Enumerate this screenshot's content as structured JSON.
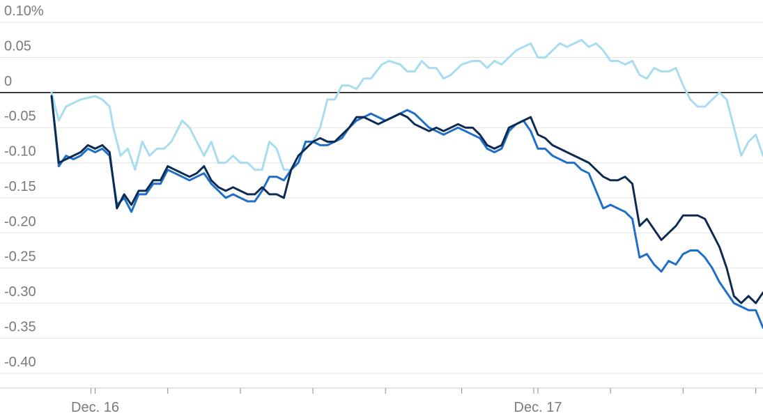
{
  "chart_data": {
    "type": "line",
    "y_unit_suffix": "%",
    "ylim": [
      -0.42,
      0.11
    ],
    "yticks": [
      0.1,
      0.05,
      0,
      -0.05,
      -0.1,
      -0.15,
      -0.2,
      -0.25,
      -0.3,
      -0.35,
      -0.4
    ],
    "ytick_labels": [
      "0.10%",
      "0.05",
      "0",
      "-0.05",
      "-0.10",
      "-0.15",
      "-0.20",
      "-0.25",
      "-0.30",
      "-0.35",
      "-0.40"
    ],
    "grid": true,
    "x_tick_labels": [
      {
        "index": 12,
        "label": "Dec. 16"
      },
      {
        "index": 134,
        "label": "Dec. 17"
      }
    ],
    "x_minor_tick_indices": [
      12,
      32,
      52,
      72,
      92,
      113,
      134,
      154,
      174,
      194
    ],
    "n_points": 197,
    "series": [
      {
        "color": "#a8dcef",
        "points": [
          [
            0,
            0.0
          ],
          [
            2,
            -0.04
          ],
          [
            4,
            -0.02
          ],
          [
            8,
            -0.01
          ],
          [
            12,
            -0.005
          ],
          [
            14,
            -0.01
          ],
          [
            16,
            -0.02
          ],
          [
            17,
            -0.05
          ],
          [
            19,
            -0.09
          ],
          [
            21,
            -0.08
          ],
          [
            23,
            -0.11
          ],
          [
            25,
            -0.07
          ],
          [
            27,
            -0.09
          ],
          [
            29,
            -0.08
          ],
          [
            31,
            -0.08
          ],
          [
            33,
            -0.07
          ],
          [
            36,
            -0.04
          ],
          [
            38,
            -0.05
          ],
          [
            40,
            -0.07
          ],
          [
            42,
            -0.09
          ],
          [
            44,
            -0.07
          ],
          [
            46,
            -0.1
          ],
          [
            48,
            -0.1
          ],
          [
            50,
            -0.09
          ],
          [
            52,
            -0.1
          ],
          [
            54,
            -0.1
          ],
          [
            56,
            -0.11
          ],
          [
            58,
            -0.11
          ],
          [
            60,
            -0.07
          ],
          [
            62,
            -0.08
          ],
          [
            64,
            -0.11
          ],
          [
            66,
            -0.11
          ],
          [
            68,
            -0.1
          ],
          [
            70,
            -0.07
          ],
          [
            72,
            -0.07
          ],
          [
            74,
            -0.05
          ],
          [
            76,
            -0.01
          ],
          [
            78,
            -0.01
          ],
          [
            80,
            0.01
          ],
          [
            82,
            0.01
          ],
          [
            84,
            0.005
          ],
          [
            86,
            0.02
          ],
          [
            88,
            0.02
          ],
          [
            91,
            0.04
          ],
          [
            93,
            0.045
          ],
          [
            96,
            0.04
          ],
          [
            98,
            0.03
          ],
          [
            100,
            0.03
          ],
          [
            102,
            0.045
          ],
          [
            104,
            0.035
          ],
          [
            106,
            0.035
          ],
          [
            108,
            0.02
          ],
          [
            110,
            0.025
          ],
          [
            113,
            0.04
          ],
          [
            116,
            0.045
          ],
          [
            118,
            0.045
          ],
          [
            120,
            0.035
          ],
          [
            122,
            0.045
          ],
          [
            124,
            0.04
          ],
          [
            126,
            0.05
          ],
          [
            128,
            0.06
          ],
          [
            130,
            0.065
          ],
          [
            132,
            0.07
          ],
          [
            134,
            0.05
          ],
          [
            136,
            0.05
          ],
          [
            138,
            0.06
          ],
          [
            140,
            0.07
          ],
          [
            142,
            0.065
          ],
          [
            144,
            0.07
          ],
          [
            146,
            0.075
          ],
          [
            148,
            0.065
          ],
          [
            150,
            0.07
          ],
          [
            152,
            0.06
          ],
          [
            154,
            0.045
          ],
          [
            156,
            0.045
          ],
          [
            158,
            0.04
          ],
          [
            160,
            0.045
          ],
          [
            162,
            0.025
          ],
          [
            164,
            0.02
          ],
          [
            166,
            0.035
          ],
          [
            168,
            0.03
          ],
          [
            170,
            0.03
          ],
          [
            172,
            0.035
          ],
          [
            174,
            0.01
          ],
          [
            176,
            -0.01
          ],
          [
            178,
            -0.02
          ],
          [
            180,
            -0.02
          ],
          [
            182,
            -0.01
          ],
          [
            184,
            0.0
          ],
          [
            186,
            -0.01
          ],
          [
            188,
            -0.05
          ],
          [
            190,
            -0.09
          ],
          [
            192,
            -0.07
          ],
          [
            194,
            -0.06
          ],
          [
            196,
            -0.09
          ]
        ]
      },
      {
        "color": "#1f6fc7",
        "points": [
          [
            0,
            -0.005
          ],
          [
            2,
            -0.105
          ],
          [
            4,
            -0.09
          ],
          [
            6,
            -0.095
          ],
          [
            8,
            -0.09
          ],
          [
            10,
            -0.08
          ],
          [
            12,
            -0.085
          ],
          [
            14,
            -0.08
          ],
          [
            16,
            -0.09
          ],
          [
            18,
            -0.16
          ],
          [
            20,
            -0.15
          ],
          [
            22,
            -0.17
          ],
          [
            24,
            -0.145
          ],
          [
            26,
            -0.145
          ],
          [
            28,
            -0.13
          ],
          [
            30,
            -0.13
          ],
          [
            32,
            -0.11
          ],
          [
            34,
            -0.115
          ],
          [
            36,
            -0.12
          ],
          [
            38,
            -0.125
          ],
          [
            40,
            -0.12
          ],
          [
            42,
            -0.115
          ],
          [
            44,
            -0.13
          ],
          [
            46,
            -0.14
          ],
          [
            48,
            -0.15
          ],
          [
            50,
            -0.145
          ],
          [
            52,
            -0.15
          ],
          [
            54,
            -0.155
          ],
          [
            56,
            -0.155
          ],
          [
            58,
            -0.14
          ],
          [
            60,
            -0.12
          ],
          [
            62,
            -0.12
          ],
          [
            64,
            -0.125
          ],
          [
            66,
            -0.11
          ],
          [
            68,
            -0.1
          ],
          [
            70,
            -0.07
          ],
          [
            72,
            -0.07
          ],
          [
            74,
            -0.075
          ],
          [
            76,
            -0.075
          ],
          [
            78,
            -0.07
          ],
          [
            80,
            -0.065
          ],
          [
            82,
            -0.05
          ],
          [
            84,
            -0.04
          ],
          [
            86,
            -0.035
          ],
          [
            88,
            -0.03
          ],
          [
            90,
            -0.035
          ],
          [
            92,
            -0.04
          ],
          [
            94,
            -0.035
          ],
          [
            96,
            -0.03
          ],
          [
            98,
            -0.025
          ],
          [
            100,
            -0.03
          ],
          [
            102,
            -0.04
          ],
          [
            104,
            -0.05
          ],
          [
            106,
            -0.055
          ],
          [
            108,
            -0.06
          ],
          [
            110,
            -0.055
          ],
          [
            112,
            -0.05
          ],
          [
            114,
            -0.055
          ],
          [
            116,
            -0.06
          ],
          [
            118,
            -0.065
          ],
          [
            120,
            -0.08
          ],
          [
            122,
            -0.085
          ],
          [
            124,
            -0.08
          ],
          [
            126,
            -0.055
          ],
          [
            128,
            -0.045
          ],
          [
            130,
            -0.04
          ],
          [
            132,
            -0.055
          ],
          [
            134,
            -0.08
          ],
          [
            136,
            -0.08
          ],
          [
            138,
            -0.09
          ],
          [
            140,
            -0.095
          ],
          [
            142,
            -0.1
          ],
          [
            144,
            -0.1
          ],
          [
            146,
            -0.11
          ],
          [
            148,
            -0.115
          ],
          [
            150,
            -0.14
          ],
          [
            152,
            -0.165
          ],
          [
            154,
            -0.16
          ],
          [
            156,
            -0.165
          ],
          [
            158,
            -0.17
          ],
          [
            160,
            -0.18
          ],
          [
            162,
            -0.235
          ],
          [
            164,
            -0.23
          ],
          [
            166,
            -0.245
          ],
          [
            168,
            -0.255
          ],
          [
            170,
            -0.24
          ],
          [
            172,
            -0.245
          ],
          [
            174,
            -0.23
          ],
          [
            176,
            -0.225
          ],
          [
            178,
            -0.225
          ],
          [
            180,
            -0.235
          ],
          [
            182,
            -0.25
          ],
          [
            184,
            -0.27
          ],
          [
            186,
            -0.285
          ],
          [
            188,
            -0.3
          ],
          [
            190,
            -0.305
          ],
          [
            192,
            -0.31
          ],
          [
            194,
            -0.31
          ],
          [
            196,
            -0.335
          ]
        ]
      },
      {
        "color": "#0d2b52",
        "points": [
          [
            0,
            -0.005
          ],
          [
            2,
            -0.1
          ],
          [
            4,
            -0.095
          ],
          [
            6,
            -0.09
          ],
          [
            8,
            -0.085
          ],
          [
            10,
            -0.075
          ],
          [
            12,
            -0.08
          ],
          [
            14,
            -0.075
          ],
          [
            16,
            -0.085
          ],
          [
            18,
            -0.165
          ],
          [
            20,
            -0.145
          ],
          [
            22,
            -0.16
          ],
          [
            24,
            -0.14
          ],
          [
            26,
            -0.14
          ],
          [
            28,
            -0.125
          ],
          [
            30,
            -0.125
          ],
          [
            32,
            -0.105
          ],
          [
            34,
            -0.11
          ],
          [
            36,
            -0.115
          ],
          [
            38,
            -0.12
          ],
          [
            40,
            -0.115
          ],
          [
            42,
            -0.105
          ],
          [
            44,
            -0.125
          ],
          [
            46,
            -0.135
          ],
          [
            48,
            -0.14
          ],
          [
            50,
            -0.135
          ],
          [
            52,
            -0.14
          ],
          [
            54,
            -0.145
          ],
          [
            56,
            -0.145
          ],
          [
            58,
            -0.135
          ],
          [
            60,
            -0.145
          ],
          [
            62,
            -0.145
          ],
          [
            64,
            -0.15
          ],
          [
            66,
            -0.11
          ],
          [
            68,
            -0.09
          ],
          [
            70,
            -0.08
          ],
          [
            72,
            -0.07
          ],
          [
            74,
            -0.065
          ],
          [
            76,
            -0.07
          ],
          [
            78,
            -0.07
          ],
          [
            80,
            -0.06
          ],
          [
            82,
            -0.05
          ],
          [
            84,
            -0.035
          ],
          [
            86,
            -0.035
          ],
          [
            88,
            -0.04
          ],
          [
            90,
            -0.045
          ],
          [
            92,
            -0.04
          ],
          [
            94,
            -0.035
          ],
          [
            96,
            -0.03
          ],
          [
            98,
            -0.035
          ],
          [
            100,
            -0.045
          ],
          [
            102,
            -0.05
          ],
          [
            104,
            -0.055
          ],
          [
            106,
            -0.05
          ],
          [
            108,
            -0.055
          ],
          [
            110,
            -0.05
          ],
          [
            112,
            -0.045
          ],
          [
            114,
            -0.05
          ],
          [
            116,
            -0.05
          ],
          [
            118,
            -0.06
          ],
          [
            120,
            -0.075
          ],
          [
            122,
            -0.08
          ],
          [
            124,
            -0.075
          ],
          [
            126,
            -0.05
          ],
          [
            128,
            -0.045
          ],
          [
            130,
            -0.04
          ],
          [
            132,
            -0.035
          ],
          [
            134,
            -0.06
          ],
          [
            136,
            -0.065
          ],
          [
            138,
            -0.075
          ],
          [
            140,
            -0.08
          ],
          [
            142,
            -0.085
          ],
          [
            144,
            -0.09
          ],
          [
            146,
            -0.095
          ],
          [
            148,
            -0.1
          ],
          [
            150,
            -0.11
          ],
          [
            152,
            -0.12
          ],
          [
            154,
            -0.125
          ],
          [
            156,
            -0.125
          ],
          [
            158,
            -0.12
          ],
          [
            160,
            -0.13
          ],
          [
            162,
            -0.19
          ],
          [
            164,
            -0.18
          ],
          [
            166,
            -0.195
          ],
          [
            168,
            -0.21
          ],
          [
            170,
            -0.2
          ],
          [
            172,
            -0.19
          ],
          [
            174,
            -0.175
          ],
          [
            176,
            -0.175
          ],
          [
            178,
            -0.175
          ],
          [
            180,
            -0.18
          ],
          [
            182,
            -0.2
          ],
          [
            184,
            -0.22
          ],
          [
            186,
            -0.25
          ],
          [
            188,
            -0.29
          ],
          [
            190,
            -0.3
          ],
          [
            192,
            -0.29
          ],
          [
            194,
            -0.3
          ],
          [
            196,
            -0.285
          ]
        ]
      }
    ]
  }
}
